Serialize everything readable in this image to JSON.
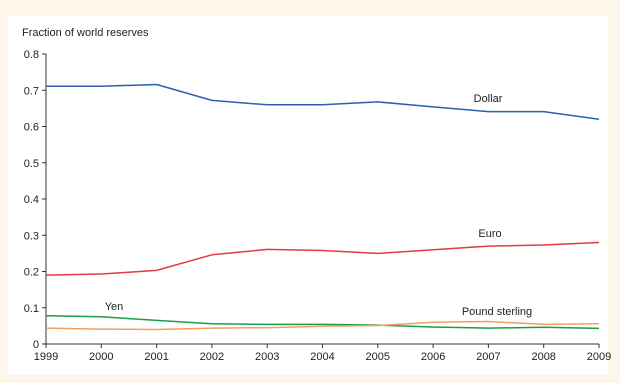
{
  "chart_data": {
    "type": "line",
    "ylabel": "Fraction of world reserves",
    "xlabel": "",
    "x": [
      1999,
      2000,
      2001,
      2002,
      2003,
      2004,
      2005,
      2006,
      2007,
      2008,
      2009
    ],
    "xlim": [
      1999,
      2009
    ],
    "ylim": [
      0,
      0.8
    ],
    "yticks": [
      "0",
      "0.1",
      "0.2",
      "0.3",
      "0.4",
      "0.5",
      "0.6",
      "0.7",
      "0.8"
    ],
    "xticks": [
      "1999",
      "2000",
      "2001",
      "2002",
      "2003",
      "2004",
      "2005",
      "2006",
      "2007",
      "2008",
      "2009"
    ],
    "grid": false,
    "series": [
      {
        "name": "Dollar",
        "color": "#2b62b0",
        "values": [
          0.711,
          0.711,
          0.716,
          0.672,
          0.66,
          0.66,
          0.668,
          0.654,
          0.641,
          0.641,
          0.62
        ]
      },
      {
        "name": "Euro",
        "color": "#e43a45",
        "values": [
          0.19,
          0.193,
          0.203,
          0.246,
          0.261,
          0.258,
          0.25,
          0.26,
          0.27,
          0.273,
          0.28
        ]
      },
      {
        "name": "Yen",
        "color": "#1f9a4c",
        "values": [
          0.078,
          0.075,
          0.065,
          0.056,
          0.054,
          0.054,
          0.052,
          0.047,
          0.044,
          0.046,
          0.043
        ]
      },
      {
        "name": "Pound sterling",
        "color": "#f0a060",
        "values": [
          0.044,
          0.041,
          0.04,
          0.044,
          0.045,
          0.049,
          0.051,
          0.06,
          0.062,
          0.054,
          0.056
        ]
      }
    ]
  },
  "colors": {
    "panel_background": "#ffffff",
    "page_background": "#fdf6ea",
    "axis": "#333333"
  }
}
